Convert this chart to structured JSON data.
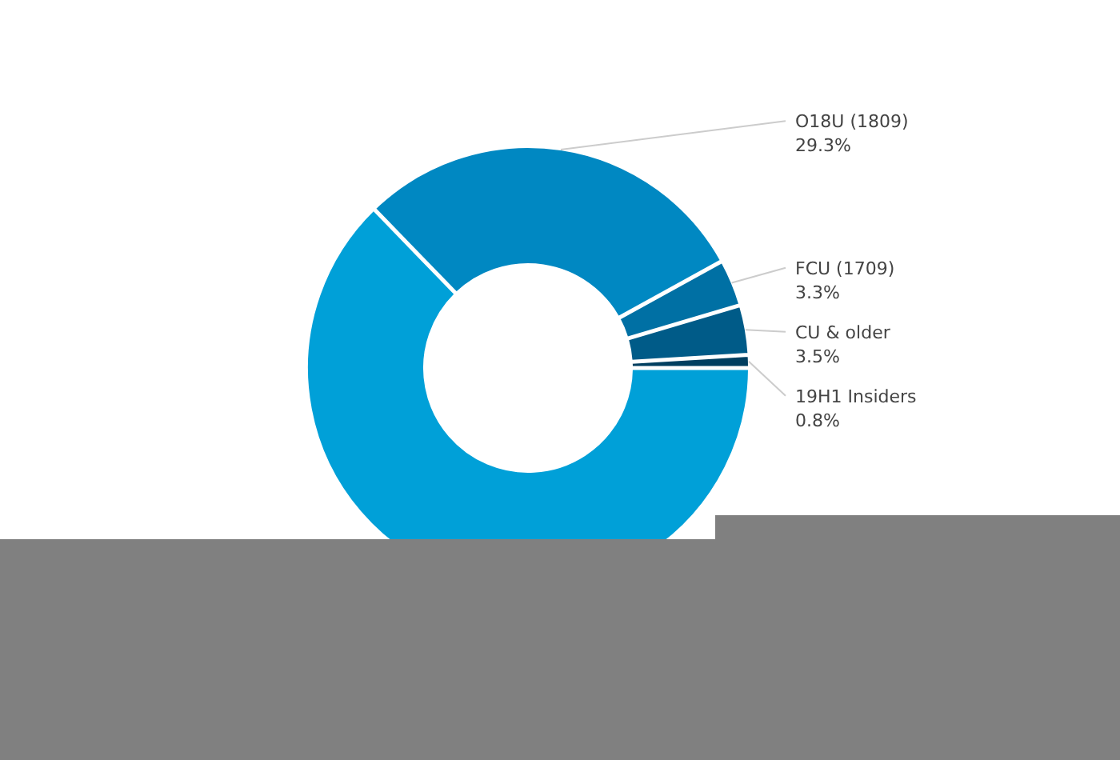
{
  "chart_data": {
    "type": "donut",
    "categories": [
      null,
      "O18U (1809)",
      "FCU (1709)",
      "CU & older",
      "19H1 Insiders"
    ],
    "values": [
      63.1,
      29.3,
      3.3,
      3.5,
      0.8
    ],
    "colors": [
      "#00a0d8",
      "#0088c2",
      "#0070a4",
      "#005b88",
      "#003f60"
    ],
    "value_labels": [
      null,
      "29.3%",
      "3.3%",
      "3.5%",
      "0.8%"
    ]
  }
}
